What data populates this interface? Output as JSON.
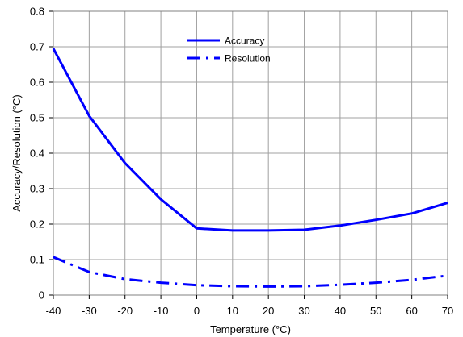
{
  "chart_data": {
    "type": "line",
    "xlabel": "Temperature (°C)",
    "ylabel": "Accuracy/Resolution (°C)",
    "xlim": [
      -40,
      70
    ],
    "ylim": [
      0,
      0.8
    ],
    "x_ticks": [
      "-40",
      "-30",
      "-20",
      "-10",
      "0",
      "10",
      "20",
      "30",
      "40",
      "50",
      "60",
      "70"
    ],
    "y_ticks": [
      "0",
      "0.1",
      "0.2",
      "0.3",
      "0.4",
      "0.5",
      "0.6",
      "0.7",
      "0.8"
    ],
    "grid": true,
    "legend_position": "top-center",
    "series": [
      {
        "name": "Accuracy",
        "style": "solid",
        "color": "#0000ff",
        "x": [
          -40,
          -30,
          -20,
          -10,
          0,
          10,
          20,
          30,
          40,
          50,
          60,
          70
        ],
        "y": [
          0.695,
          0.505,
          0.372,
          0.27,
          0.188,
          0.182,
          0.182,
          0.184,
          0.196,
          0.212,
          0.23,
          0.26
        ]
      },
      {
        "name": "Resolution",
        "style": "dash-dot",
        "color": "#0000ff",
        "x": [
          -40,
          -30,
          -20,
          -10,
          0,
          10,
          20,
          30,
          40,
          50,
          60,
          70
        ],
        "y": [
          0.107,
          0.065,
          0.045,
          0.035,
          0.028,
          0.025,
          0.024,
          0.025,
          0.029,
          0.035,
          0.043,
          0.055
        ]
      }
    ]
  }
}
